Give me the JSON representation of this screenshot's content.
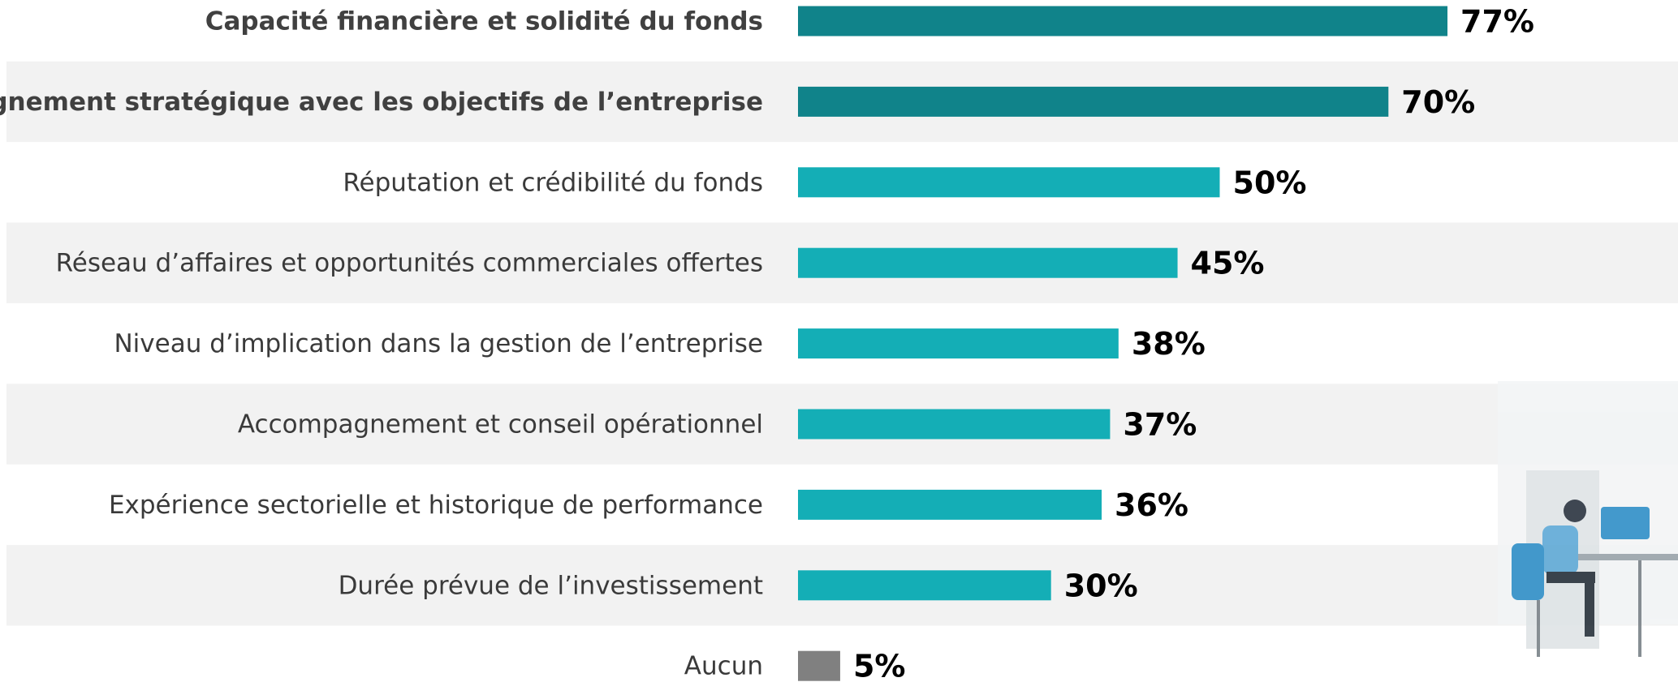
{
  "chart_data": {
    "type": "hbar",
    "categories": [
      "Capacité financière et solidité du fonds",
      "Alignement stratégique avec les objectifs de l’entreprise",
      "Réputation et crédibilité du fonds",
      "Réseau d’affaires et opportunités commerciales offertes",
      "Niveau d’implication dans la gestion de l’entreprise",
      "Accompagnement et conseil opérationnel",
      "Expérience sectorielle et historique de performance",
      "Durée prévue de l’investissement",
      "Aucun"
    ],
    "values": [
      77,
      70,
      50,
      45,
      38,
      37,
      36,
      30,
      5
    ],
    "value_labels": [
      "77%",
      "70%",
      "50%",
      "45%",
      "38%",
      "37%",
      "36%",
      "30%",
      "5%"
    ],
    "colors": [
      "#10838a",
      "#10838a",
      "#14aeb6",
      "#14aeb6",
      "#14aeb6",
      "#14aeb6",
      "#14aeb6",
      "#14aeb6",
      "#808080"
    ],
    "bold": [
      true,
      true,
      false,
      false,
      false,
      false,
      false,
      false,
      false
    ],
    "xlim": [
      0,
      100
    ]
  }
}
